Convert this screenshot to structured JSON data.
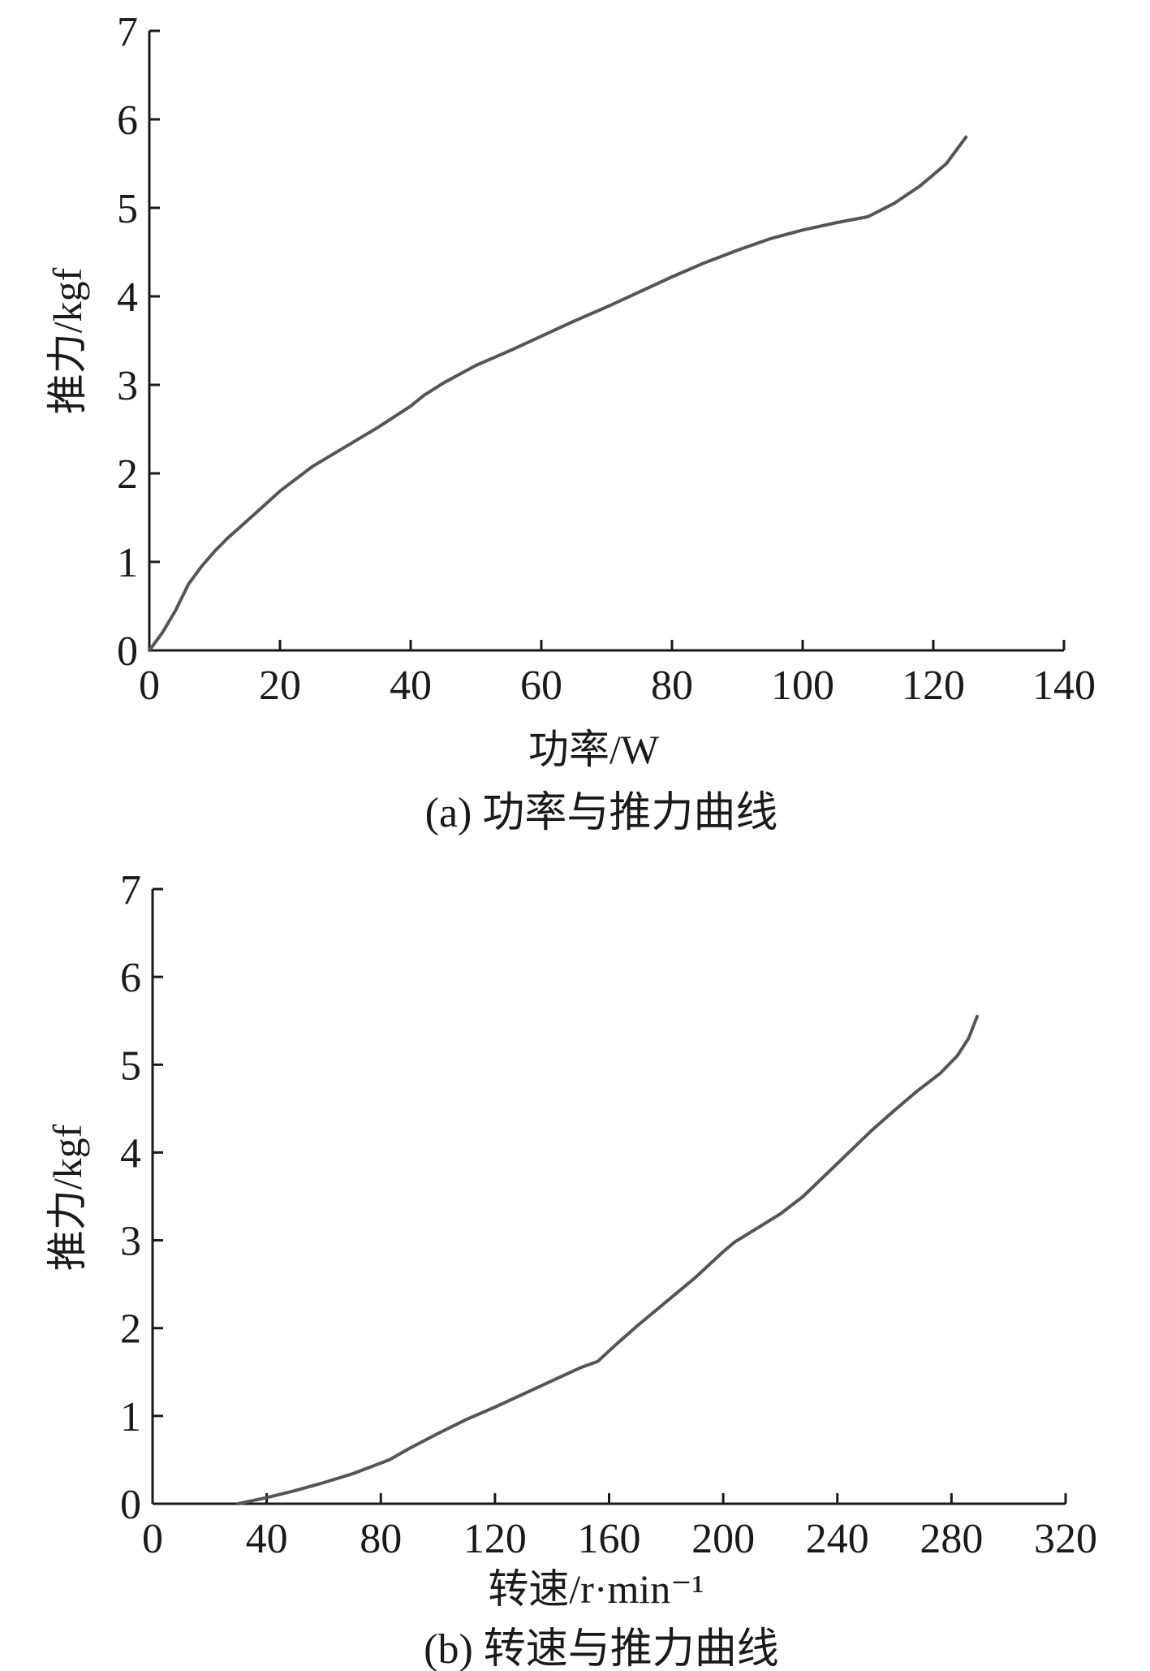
{
  "chart_data": [
    {
      "type": "line",
      "caption": "(a) 功率与推力曲线",
      "xlabel": "功率/W",
      "ylabel": "推力/kgf",
      "xlim": [
        0,
        140
      ],
      "ylim": [
        0,
        7
      ],
      "xticks": [
        0,
        20,
        40,
        60,
        80,
        100,
        120,
        140
      ],
      "yticks": [
        0,
        1,
        2,
        3,
        4,
        5,
        6,
        7
      ],
      "xtick_labels": [
        "0",
        "20",
        "40",
        "60",
        "80",
        "100",
        "120",
        "140"
      ],
      "ytick_labels": [
        "0",
        "1",
        "2",
        "3",
        "4",
        "5",
        "6",
        "7"
      ],
      "grid": false,
      "series": [
        {
          "color": "#555555",
          "x": [
            0,
            2,
            4,
            6,
            8,
            10,
            12,
            14,
            17,
            20,
            25,
            30,
            35,
            40,
            42,
            45,
            50,
            55,
            60,
            65,
            70,
            75,
            80,
            85,
            90,
            95,
            100,
            105,
            110,
            114,
            118,
            122,
            125
          ],
          "y": [
            0,
            0.2,
            0.45,
            0.75,
            0.95,
            1.12,
            1.27,
            1.4,
            1.6,
            1.8,
            2.08,
            2.3,
            2.52,
            2.76,
            2.88,
            3.02,
            3.22,
            3.38,
            3.55,
            3.72,
            3.88,
            4.05,
            4.22,
            4.38,
            4.52,
            4.65,
            4.75,
            4.83,
            4.9,
            5.05,
            5.25,
            5.5,
            5.8
          ]
        }
      ]
    },
    {
      "type": "line",
      "caption": "(b) 转速与推力曲线",
      "xlabel": "转速/r·min⁻¹",
      "ylabel": "推力/kgf",
      "xlim": [
        0,
        320
      ],
      "ylim": [
        0,
        7
      ],
      "xticks": [
        0,
        40,
        80,
        120,
        160,
        200,
        240,
        280,
        320
      ],
      "yticks": [
        0,
        1,
        2,
        3,
        4,
        5,
        6,
        7
      ],
      "xtick_labels": [
        "0",
        "40",
        "80",
        "120",
        "160",
        "200",
        "240",
        "280",
        "320"
      ],
      "ytick_labels": [
        "0",
        "1",
        "2",
        "3",
        "4",
        "5",
        "6",
        "7"
      ],
      "grid": false,
      "series": [
        {
          "color": "#555555",
          "x": [
            30,
            40,
            50,
            60,
            70,
            83,
            90,
            100,
            110,
            120,
            130,
            140,
            150,
            156,
            162,
            170,
            180,
            190,
            200,
            204,
            208,
            212,
            220,
            228,
            236,
            244,
            252,
            260,
            268,
            276,
            282,
            286,
            289
          ],
          "y": [
            0,
            0.07,
            0.15,
            0.24,
            0.34,
            0.5,
            0.63,
            0.8,
            0.96,
            1.1,
            1.25,
            1.4,
            1.55,
            1.62,
            1.8,
            2.03,
            2.3,
            2.57,
            2.87,
            2.98,
            3.06,
            3.14,
            3.3,
            3.5,
            3.75,
            4.0,
            4.25,
            4.48,
            4.7,
            4.9,
            5.1,
            5.3,
            5.55
          ]
        }
      ]
    }
  ]
}
